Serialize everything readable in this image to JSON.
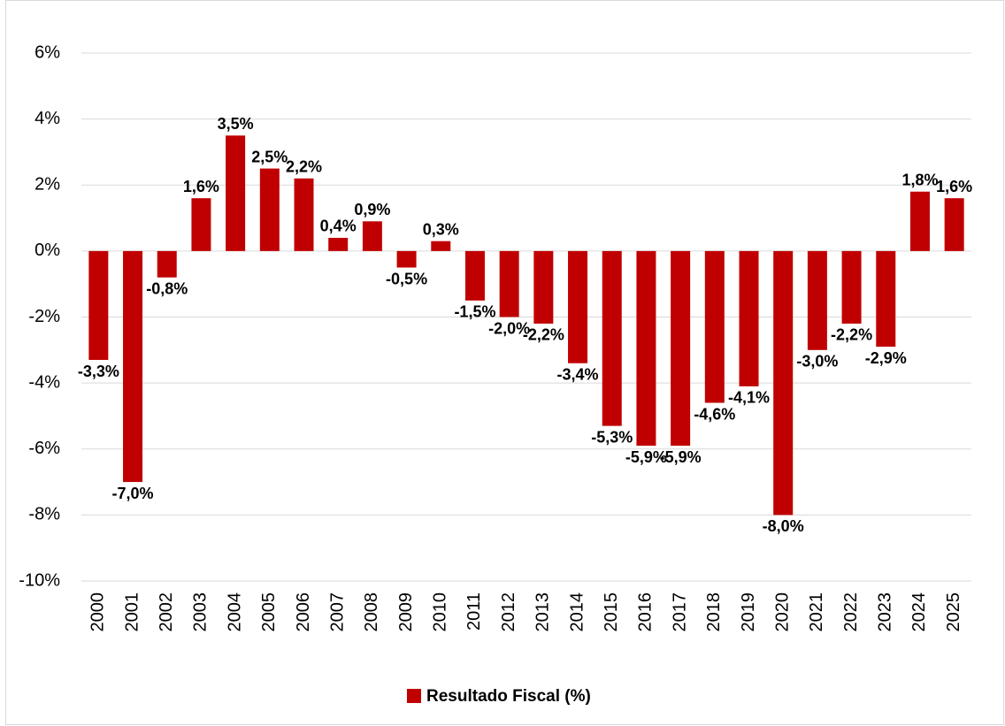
{
  "chart_data": {
    "type": "bar",
    "categories": [
      "2000",
      "2001",
      "2002",
      "2003",
      "2004",
      "2005",
      "2006",
      "2007",
      "2008",
      "2009",
      "2010",
      "2011",
      "2012",
      "2013",
      "2014",
      "2015",
      "2016",
      "2017",
      "2018",
      "2019",
      "2020",
      "2021",
      "2022",
      "2023",
      "2024",
      "2025"
    ],
    "series": [
      {
        "name": "Resultado Fiscal (%)",
        "color": "#c00000",
        "values": [
          -3.3,
          -7.0,
          -0.8,
          1.6,
          3.5,
          2.5,
          2.2,
          0.4,
          0.9,
          -0.5,
          0.3,
          -1.5,
          -2.0,
          -2.2,
          -3.4,
          -5.3,
          -5.9,
          -5.9,
          -4.6,
          -4.1,
          -8.0,
          -3.0,
          -2.2,
          -2.9,
          1.8,
          1.6
        ],
        "value_labels": [
          "-3,3%",
          "-7,0%",
          "-0,8%",
          "1,6%",
          "3,5%",
          "2,5%",
          "2,2%",
          "0,4%",
          "0,9%",
          "-0,5%",
          "0,3%",
          "-1,5%",
          "-2,0%",
          "-2,2%",
          "-3,4%",
          "-5,3%",
          "-5,9%",
          "-5,9%",
          "-4,6%",
          "-4,1%",
          "-8,0%",
          "-3,0%",
          "-2,2%",
          "-2,9%",
          "1,8%",
          "1,6%"
        ]
      }
    ],
    "ylim": [
      -10,
      6
    ],
    "yticks": [
      {
        "value": -10,
        "label": "-10%"
      },
      {
        "value": -8,
        "label": "-8%"
      },
      {
        "value": -6,
        "label": "-6%"
      },
      {
        "value": -4,
        "label": "-4%"
      },
      {
        "value": -2,
        "label": "-2%"
      },
      {
        "value": 0,
        "label": "0%"
      },
      {
        "value": 2,
        "label": "2%"
      },
      {
        "value": 4,
        "label": "4%"
      },
      {
        "value": 6,
        "label": "6%"
      }
    ],
    "grid": true,
    "legend": "bottom"
  }
}
